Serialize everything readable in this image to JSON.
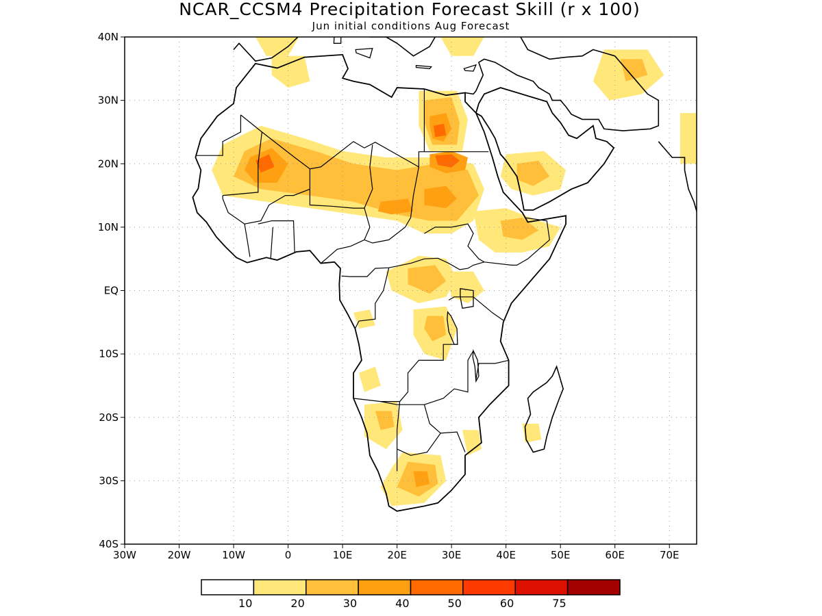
{
  "title": "NCAR_CCSM4 Precipitation Forecast Skill (r x 100)",
  "subtitle": "Jun initial conditions  Aug Forecast",
  "map": {
    "lon_range": [
      -30,
      75
    ],
    "lat_range": [
      -40,
      40
    ],
    "grid": true,
    "lat_ticks": [
      {
        "value": 40,
        "label": "40N"
      },
      {
        "value": 30,
        "label": "30N"
      },
      {
        "value": 20,
        "label": "20N"
      },
      {
        "value": 10,
        "label": "10N"
      },
      {
        "value": 0,
        "label": "EQ"
      },
      {
        "value": -10,
        "label": "10S"
      },
      {
        "value": -20,
        "label": "20S"
      },
      {
        "value": -30,
        "label": "30S"
      },
      {
        "value": -40,
        "label": "40S"
      }
    ],
    "lon_ticks": [
      {
        "value": -30,
        "label": "30W"
      },
      {
        "value": -20,
        "label": "20W"
      },
      {
        "value": -10,
        "label": "10W"
      },
      {
        "value": 0,
        "label": "0"
      },
      {
        "value": 10,
        "label": "10E"
      },
      {
        "value": 20,
        "label": "20E"
      },
      {
        "value": 30,
        "label": "30E"
      },
      {
        "value": 40,
        "label": "40E"
      },
      {
        "value": 50,
        "label": "50E"
      },
      {
        "value": 60,
        "label": "60E"
      },
      {
        "value": 70,
        "label": "70E"
      }
    ]
  },
  "colorbar": {
    "colors": [
      "#ffffff",
      "#ffe77a",
      "#ffbf3a",
      "#ffa012",
      "#ff6a00",
      "#ff3a00",
      "#de1000",
      "#a50000"
    ],
    "labels": [
      "10",
      "20",
      "30",
      "40",
      "50",
      "60",
      "75"
    ]
  },
  "skill_regions": [
    {
      "level": 1,
      "pts": [
        [
          -12,
          23
        ],
        [
          -5,
          26
        ],
        [
          3,
          24
        ],
        [
          10,
          22
        ],
        [
          18,
          21
        ],
        [
          26,
          21
        ],
        [
          34,
          20
        ],
        [
          36,
          16
        ],
        [
          34,
          11
        ],
        [
          30,
          9
        ],
        [
          25,
          9
        ],
        [
          20,
          11
        ],
        [
          12,
          12
        ],
        [
          4,
          13
        ],
        [
          -4,
          14
        ],
        [
          -12,
          15
        ],
        [
          -14,
          19
        ]
      ]
    },
    {
      "level": 2,
      "pts": [
        [
          -8,
          22
        ],
        [
          -3,
          24
        ],
        [
          5,
          22
        ],
        [
          12,
          20
        ],
        [
          20,
          19
        ],
        [
          27,
          20
        ],
        [
          33,
          19
        ],
        [
          35,
          15
        ],
        [
          31,
          11
        ],
        [
          26,
          11
        ],
        [
          20,
          12
        ],
        [
          12,
          14
        ],
        [
          4,
          15
        ],
        [
          -5,
          16
        ],
        [
          -10,
          18
        ]
      ]
    },
    {
      "level": 3,
      "pts": [
        [
          -7,
          21
        ],
        [
          -3,
          22.5
        ],
        [
          0,
          20
        ],
        [
          -2,
          17
        ],
        [
          -6,
          17
        ],
        [
          -8,
          19
        ]
      ]
    },
    {
      "level": 3,
      "pts": [
        [
          17,
          14
        ],
        [
          22,
          14.5
        ],
        [
          23,
          12.5
        ],
        [
          19,
          12
        ],
        [
          16.5,
          12.5
        ]
      ]
    },
    {
      "level": 3,
      "pts": [
        [
          26,
          21.5
        ],
        [
          30,
          22
        ],
        [
          33,
          21
        ],
        [
          32.5,
          19
        ],
        [
          29,
          18.5
        ],
        [
          26,
          19.5
        ]
      ]
    },
    {
      "level": 3,
      "pts": [
        [
          25,
          16
        ],
        [
          29,
          16.5
        ],
        [
          31,
          14.5
        ],
        [
          29,
          13
        ],
        [
          25,
          13.5
        ]
      ]
    },
    {
      "level": 4,
      "pts": [
        [
          27,
          21.3
        ],
        [
          30,
          21.5
        ],
        [
          31.5,
          20.5
        ],
        [
          30,
          19.4
        ],
        [
          27.5,
          19.8
        ]
      ]
    },
    {
      "level": 4,
      "pts": [
        [
          -6,
          20.5
        ],
        [
          -3.5,
          21.5
        ],
        [
          -2.5,
          19.5
        ],
        [
          -5,
          18.6
        ]
      ]
    },
    {
      "level": 1,
      "pts": [
        [
          24,
          31.5
        ],
        [
          31,
          31.5
        ],
        [
          33,
          27
        ],
        [
          32,
          22
        ],
        [
          26,
          22
        ],
        [
          24,
          26
        ]
      ]
    },
    {
      "level": 2,
      "pts": [
        [
          25,
          30
        ],
        [
          30,
          30.5
        ],
        [
          31.5,
          26.5
        ],
        [
          31,
          23
        ],
        [
          26.5,
          23
        ],
        [
          25,
          26.5
        ]
      ]
    },
    {
      "level": 3,
      "pts": [
        [
          26,
          27.5
        ],
        [
          29,
          28
        ],
        [
          30,
          25.5
        ],
        [
          28.5,
          23.5
        ],
        [
          26.5,
          24
        ],
        [
          26,
          26
        ]
      ]
    },
    {
      "level": 4,
      "pts": [
        [
          26.7,
          26
        ],
        [
          28.6,
          26.3
        ],
        [
          29,
          24.5
        ],
        [
          27,
          24.2
        ]
      ]
    },
    {
      "level": 1,
      "pts": [
        [
          40,
          21.5
        ],
        [
          47,
          22
        ],
        [
          51,
          19
        ],
        [
          50,
          16
        ],
        [
          45,
          15
        ],
        [
          41,
          16
        ],
        [
          39,
          18
        ]
      ]
    },
    {
      "level": 2,
      "pts": [
        [
          42,
          20
        ],
        [
          46,
          20.5
        ],
        [
          48,
          18
        ],
        [
          45,
          16.5
        ],
        [
          42,
          17.5
        ]
      ]
    },
    {
      "level": 1,
      "pts": [
        [
          34,
          12.5
        ],
        [
          40,
          13
        ],
        [
          46,
          11
        ],
        [
          50,
          10
        ],
        [
          48,
          7
        ],
        [
          43,
          6
        ],
        [
          38,
          6
        ],
        [
          35,
          8
        ]
      ]
    },
    {
      "level": 2,
      "pts": [
        [
          39,
          11
        ],
        [
          43,
          11.5
        ],
        [
          46,
          9.5
        ],
        [
          43,
          8
        ],
        [
          39.5,
          8.5
        ]
      ]
    },
    {
      "level": 1,
      "pts": [
        [
          18,
          3
        ],
        [
          24,
          5.5
        ],
        [
          29,
          5
        ],
        [
          31,
          2
        ],
        [
          29,
          -1
        ],
        [
          24,
          -2
        ],
        [
          19,
          0
        ]
      ]
    },
    {
      "level": 2,
      "pts": [
        [
          22,
          3.5
        ],
        [
          27,
          4
        ],
        [
          29,
          1.5
        ],
        [
          26,
          -0.5
        ],
        [
          22,
          1
        ]
      ]
    },
    {
      "level": 1,
      "pts": [
        [
          29,
          3
        ],
        [
          34,
          3
        ],
        [
          36,
          0
        ],
        [
          33,
          -2
        ],
        [
          30,
          -1
        ]
      ]
    },
    {
      "level": 1,
      "pts": [
        [
          23,
          -3
        ],
        [
          29,
          -2.5
        ],
        [
          31,
          -6
        ],
        [
          29,
          -11
        ],
        [
          25,
          -10
        ],
        [
          23,
          -7
        ]
      ]
    },
    {
      "level": 2,
      "pts": [
        [
          25.5,
          -4
        ],
        [
          28.5,
          -4
        ],
        [
          29,
          -7
        ],
        [
          26.5,
          -8
        ],
        [
          25,
          -6
        ]
      ]
    },
    {
      "level": 1,
      "pts": [
        [
          12,
          -3.5
        ],
        [
          15,
          -3
        ],
        [
          16,
          -5.5
        ],
        [
          13,
          -6
        ]
      ]
    },
    {
      "level": 1,
      "pts": [
        [
          13,
          -13
        ],
        [
          16,
          -12
        ],
        [
          17,
          -15
        ],
        [
          14,
          -16
        ]
      ]
    },
    {
      "level": 1,
      "pts": [
        [
          14,
          -18
        ],
        [
          20,
          -17.5
        ],
        [
          21,
          -22
        ],
        [
          18,
          -25
        ],
        [
          14,
          -23
        ]
      ]
    },
    {
      "level": 2,
      "pts": [
        [
          16,
          -19
        ],
        [
          19,
          -19
        ],
        [
          19.5,
          -21.5
        ],
        [
          17,
          -22
        ]
      ]
    },
    {
      "level": 1,
      "pts": [
        [
          21,
          -25.5
        ],
        [
          28,
          -26
        ],
        [
          29,
          -30
        ],
        [
          25,
          -33.5
        ],
        [
          19,
          -34
        ],
        [
          17,
          -31
        ],
        [
          19,
          -28
        ]
      ]
    },
    {
      "level": 2,
      "pts": [
        [
          22,
          -27
        ],
        [
          27,
          -27.5
        ],
        [
          27.5,
          -30.5
        ],
        [
          24,
          -32.5
        ],
        [
          20,
          -31
        ]
      ]
    },
    {
      "level": 3,
      "pts": [
        [
          23,
          -28.5
        ],
        [
          25.5,
          -28.5
        ],
        [
          26,
          -30.5
        ],
        [
          23.5,
          -31
        ]
      ]
    },
    {
      "level": 1,
      "pts": [
        [
          32,
          -22
        ],
        [
          35,
          -22
        ],
        [
          35.5,
          -25
        ],
        [
          33,
          -26
        ]
      ]
    },
    {
      "level": 1,
      "pts": [
        [
          43,
          -21
        ],
        [
          46,
          -21
        ],
        [
          46.5,
          -23.5
        ],
        [
          43.5,
          -24
        ]
      ]
    },
    {
      "level": 1,
      "pts": [
        [
          -3,
          37
        ],
        [
          3,
          37
        ],
        [
          4,
          33
        ],
        [
          0,
          32
        ],
        [
          -3,
          34
        ]
      ]
    },
    {
      "level": 1,
      "pts": [
        [
          58,
          38
        ],
        [
          66,
          38
        ],
        [
          69,
          34
        ],
        [
          65,
          31
        ],
        [
          59,
          30
        ],
        [
          56,
          33
        ]
      ]
    },
    {
      "level": 2,
      "pts": [
        [
          61,
          36.5
        ],
        [
          65,
          36.5
        ],
        [
          66,
          34
        ],
        [
          62,
          33
        ]
      ]
    },
    {
      "level": 1,
      "pts": [
        [
          72,
          28
        ],
        [
          75,
          28
        ],
        [
          75,
          20
        ],
        [
          72,
          20
        ]
      ]
    },
    {
      "level": 1,
      "pts": [
        [
          -6,
          40
        ],
        [
          2,
          40
        ],
        [
          0,
          37
        ],
        [
          -4,
          37
        ]
      ]
    },
    {
      "level": 1,
      "pts": [
        [
          28,
          40
        ],
        [
          36,
          40
        ],
        [
          34,
          37
        ],
        [
          30,
          37
        ]
      ]
    }
  ]
}
